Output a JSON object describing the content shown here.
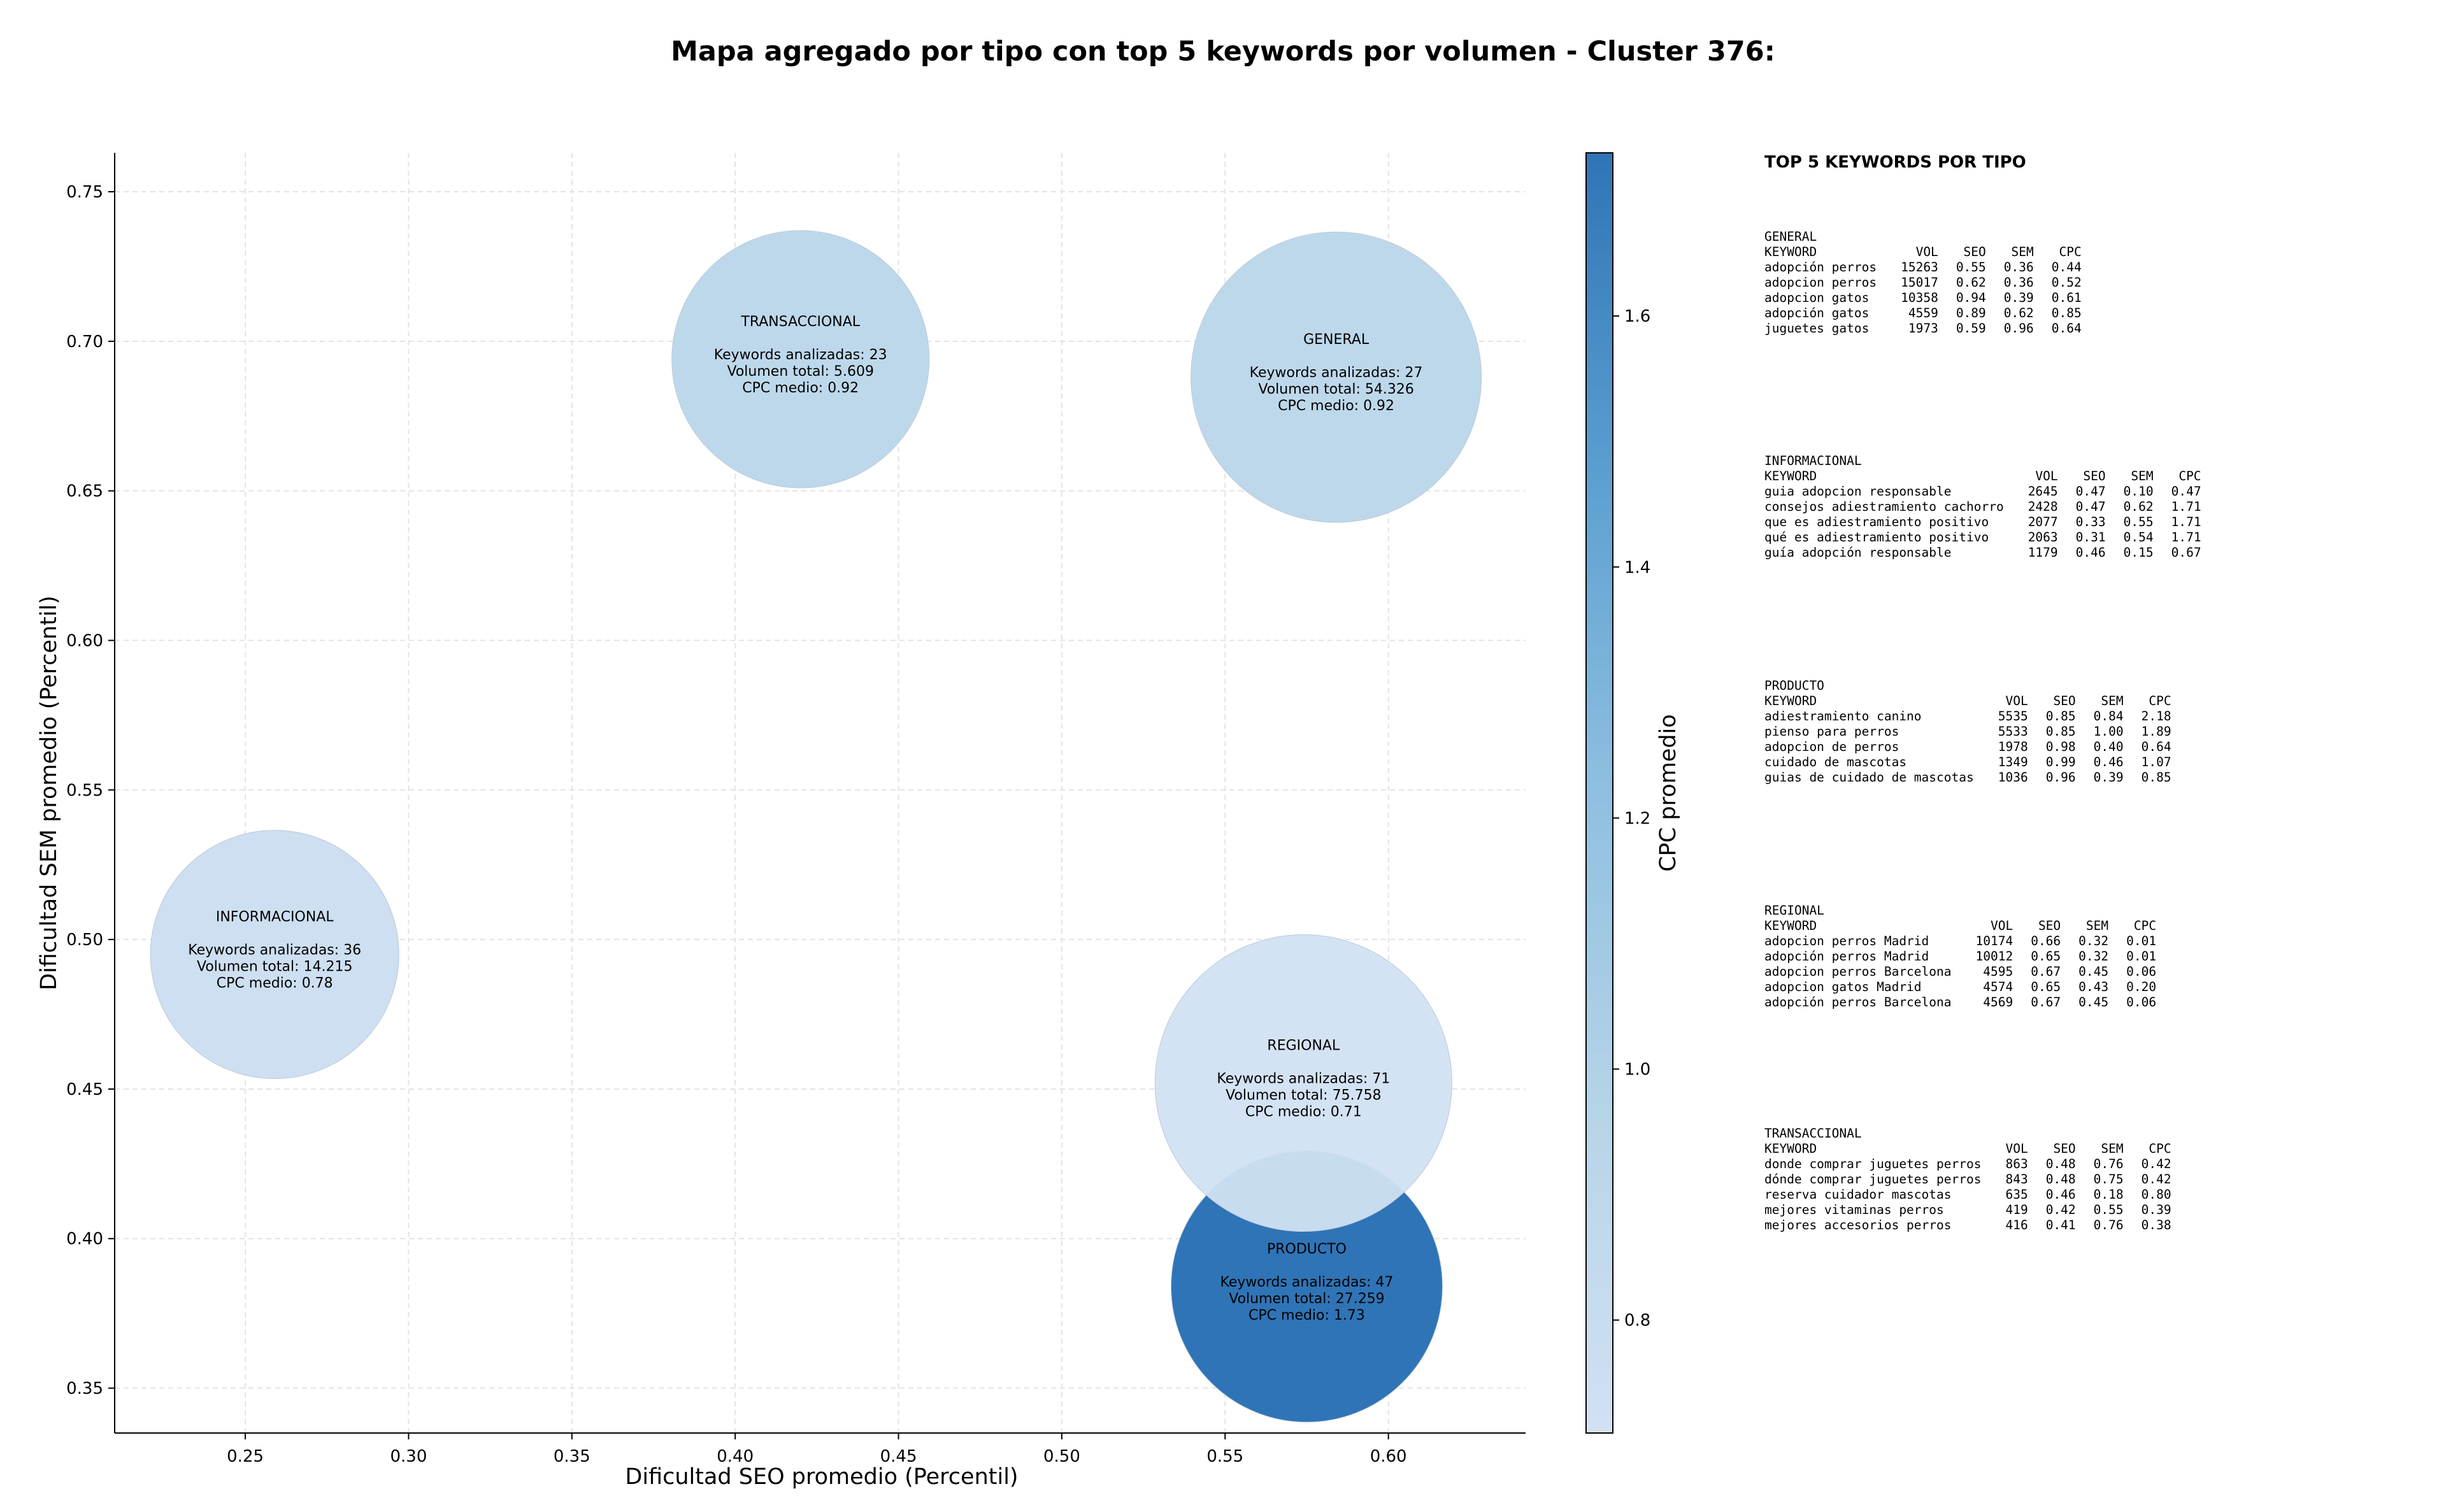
{
  "title": "Mapa agregado por tipo con top 5 keywords por volumen - Cluster 376:",
  "chart_data": {
    "type": "scatter",
    "xlabel": "Dificultad SEO promedio (Percentil)",
    "ylabel": "Dificultad SEM promedio (Percentil)",
    "xlim": [
      0.21,
      0.642
    ],
    "ylim": [
      0.335,
      0.763
    ],
    "xticks": [
      0.25,
      0.3,
      0.35,
      0.4,
      0.45,
      0.5,
      0.55,
      0.6
    ],
    "xtick_labels": [
      "0.25",
      "0.30",
      "0.35",
      "0.40",
      "0.45",
      "0.50",
      "0.55",
      "0.60"
    ],
    "yticks": [
      0.35,
      0.4,
      0.45,
      0.5,
      0.55,
      0.6,
      0.65,
      0.7,
      0.75
    ],
    "ytick_labels": [
      "0.35",
      "0.40",
      "0.45",
      "0.50",
      "0.55",
      "0.60",
      "0.65",
      "0.70",
      "0.75"
    ],
    "grid": true,
    "colorbar": {
      "label": "CPC promedio",
      "range": [
        0.71,
        1.73
      ],
      "ticks": [
        0.8,
        1.0,
        1.2,
        1.4,
        1.6
      ],
      "tick_labels": [
        "0.8",
        "1.0",
        "1.2",
        "1.4",
        "1.6"
      ],
      "colors": [
        "#d1e1f3",
        "#b6d4e8",
        "#8fc0e0",
        "#5b9fd0",
        "#2f74b6"
      ]
    },
    "points": [
      {
        "label": "TRANSACCIONAL",
        "x": 0.42,
        "y": 0.694,
        "count_text": "Keywords analizadas: 23",
        "volume_text": "Volumen total: 5.609",
        "cpc_text": "CPC medio: 0.92",
        "cpc": 0.92,
        "volume": 5609
      },
      {
        "label": "GENERAL",
        "x": 0.584,
        "y": 0.688,
        "count_text": "Keywords analizadas: 27",
        "volume_text": "Volumen total: 54.326",
        "cpc_text": "CPC medio: 0.92",
        "cpc": 0.92,
        "volume": 54326
      },
      {
        "label": "INFORMACIONAL",
        "x": 0.259,
        "y": 0.495,
        "count_text": "Keywords analizadas: 36",
        "volume_text": "Volumen total: 14.215",
        "cpc_text": "CPC medio: 0.78",
        "cpc": 0.78,
        "volume": 14215
      },
      {
        "label": "PRODUCTO",
        "x": 0.575,
        "y": 0.384,
        "count_text": "Keywords analizadas: 47",
        "volume_text": "Volumen total: 27.259",
        "cpc_text": "CPC medio: 1.73",
        "cpc": 1.73,
        "volume": 27259
      },
      {
        "label": "REGIONAL",
        "x": 0.574,
        "y": 0.452,
        "count_text": "Keywords analizadas: 71",
        "volume_text": "Volumen total: 75.758",
        "cpc_text": "CPC medio: 0.71",
        "cpc": 0.71,
        "volume": 75758
      }
    ]
  },
  "side_panel": {
    "title": "TOP 5 KEYWORDS POR TIPO",
    "header": [
      "KEYWORD",
      "VOL",
      "SEO",
      "SEM",
      "CPC"
    ],
    "groups": [
      {
        "name": "GENERAL",
        "rows": [
          [
            "adopción perros",
            "15263",
            "0.55",
            "0.36",
            "0.44"
          ],
          [
            "adopcion perros",
            "15017",
            "0.62",
            "0.36",
            "0.52"
          ],
          [
            "adopcion gatos",
            "10358",
            "0.94",
            "0.39",
            "0.61"
          ],
          [
            "adopción gatos",
            "4559",
            "0.89",
            "0.62",
            "0.85"
          ],
          [
            "juguetes gatos",
            "1973",
            "0.59",
            "0.96",
            "0.64"
          ]
        ]
      },
      {
        "name": "INFORMACIONAL",
        "rows": [
          [
            "guia adopcion responsable",
            "2645",
            "0.47",
            "0.10",
            "0.47"
          ],
          [
            "consejos adiestramiento cachorro",
            "2428",
            "0.47",
            "0.62",
            "1.71"
          ],
          [
            "que es adiestramiento positivo",
            "2077",
            "0.33",
            "0.55",
            "1.71"
          ],
          [
            "qué es adiestramiento positivo",
            "2063",
            "0.31",
            "0.54",
            "1.71"
          ],
          [
            "guía adopción responsable",
            "1179",
            "0.46",
            "0.15",
            "0.67"
          ]
        ]
      },
      {
        "name": "PRODUCTO",
        "rows": [
          [
            "adiestramiento canino",
            "5535",
            "0.85",
            "0.84",
            "2.18"
          ],
          [
            "pienso para perros",
            "5533",
            "0.85",
            "1.00",
            "1.89"
          ],
          [
            "adopcion de perros",
            "1978",
            "0.98",
            "0.40",
            "0.64"
          ],
          [
            "cuidado de mascotas",
            "1349",
            "0.99",
            "0.46",
            "1.07"
          ],
          [
            "guias de cuidado de mascotas",
            "1036",
            "0.96",
            "0.39",
            "0.85"
          ]
        ]
      },
      {
        "name": "REGIONAL",
        "rows": [
          [
            "adopcion perros Madrid",
            "10174",
            "0.66",
            "0.32",
            "0.01"
          ],
          [
            "adopción perros Madrid",
            "10012",
            "0.65",
            "0.32",
            "0.01"
          ],
          [
            "adopcion perros Barcelona",
            "4595",
            "0.67",
            "0.45",
            "0.06"
          ],
          [
            "adopcion gatos Madrid",
            "4574",
            "0.65",
            "0.43",
            "0.20"
          ],
          [
            "adopción perros Barcelona",
            "4569",
            "0.67",
            "0.45",
            "0.06"
          ]
        ]
      },
      {
        "name": "TRANSACCIONAL",
        "rows": [
          [
            "donde comprar juguetes perros",
            "863",
            "0.48",
            "0.76",
            "0.42"
          ],
          [
            "dónde comprar juguetes perros",
            "843",
            "0.48",
            "0.75",
            "0.42"
          ],
          [
            "reserva cuidador mascotas",
            "635",
            "0.46",
            "0.18",
            "0.80"
          ],
          [
            "mejores vitaminas perros",
            "419",
            "0.42",
            "0.55",
            "0.39"
          ],
          [
            "mejores accesorios perros",
            "416",
            "0.41",
            "0.76",
            "0.38"
          ]
        ]
      }
    ]
  }
}
